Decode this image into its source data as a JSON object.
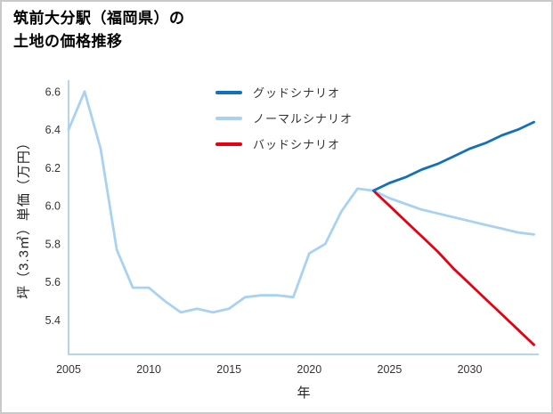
{
  "page": {
    "title_line1": "筑前大分駅（福岡県）の",
    "title_line2": "土地の価格推移"
  },
  "chart_data": {
    "type": "line",
    "title": "筑前大分駅（福岡県）の土地の価格推移",
    "xlabel": "年",
    "ylabel": "坪（3.3㎡）単価（万円）",
    "xlim": [
      2005,
      2034.3
    ],
    "ylim": [
      5.22,
      6.66
    ],
    "xticks": [
      2005,
      2010,
      2015,
      2020,
      2025,
      2030
    ],
    "yticks": [
      5.4,
      5.6,
      5.8,
      6.0,
      6.2,
      6.4,
      6.6
    ],
    "grid": false,
    "legend_position": "upper-center-inside",
    "axis_color": "#b5d4ed",
    "history": {
      "color": "#a9d2f2",
      "x": [
        2005,
        2006,
        2007,
        2008,
        2009,
        2010,
        2011,
        2012,
        2013,
        2014,
        2015,
        2016,
        2017,
        2018,
        2019,
        2020,
        2021,
        2022,
        2023,
        2024
      ],
      "y": [
        6.4,
        6.6,
        6.3,
        5.77,
        5.57,
        5.57,
        5.5,
        5.44,
        5.46,
        5.44,
        5.46,
        5.52,
        5.53,
        5.53,
        5.52,
        5.75,
        5.8,
        5.97,
        6.09,
        6.08
      ]
    },
    "series": [
      {
        "name": "グッドシナリオ",
        "color": "#1271b8",
        "x": [
          2024,
          2025,
          2026,
          2027,
          2028,
          2029,
          2030,
          2031,
          2032,
          2033,
          2034
        ],
        "y": [
          6.08,
          6.12,
          6.15,
          6.19,
          6.22,
          6.26,
          6.3,
          6.33,
          6.37,
          6.4,
          6.44
        ]
      },
      {
        "name": "ノーマルシナリオ",
        "color": "#a9d2f2",
        "x": [
          2024,
          2025,
          2026,
          2027,
          2028,
          2029,
          2030,
          2031,
          2032,
          2033,
          2034
        ],
        "y": [
          6.08,
          6.04,
          6.01,
          5.98,
          5.96,
          5.94,
          5.92,
          5.9,
          5.88,
          5.86,
          5.85
        ]
      },
      {
        "name": "バッドシナリオ",
        "color": "#e60012",
        "x": [
          2024,
          2025,
          2026,
          2027,
          2028,
          2029,
          2030,
          2031,
          2032,
          2033,
          2034
        ],
        "y": [
          6.08,
          6.0,
          5.92,
          5.84,
          5.76,
          5.67,
          5.59,
          5.51,
          5.43,
          5.35,
          5.27
        ]
      }
    ]
  }
}
